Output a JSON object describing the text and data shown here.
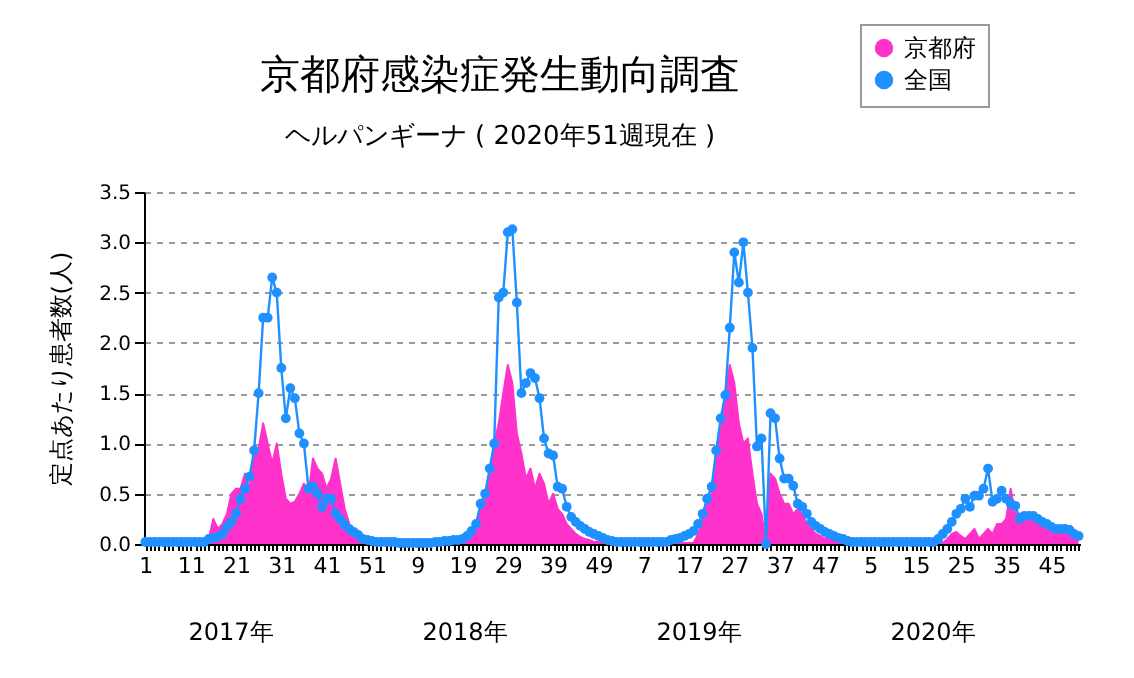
{
  "chart_data": {
    "type": "line",
    "title": "京都府感染症発生動向調査",
    "subtitle": "ヘルパンギーナ ( 2020年51週現在 )",
    "ylabel": "定点あたり患者数(人)",
    "annotations": [
      "2017年",
      "2018年",
      "2019年",
      "2020年"
    ],
    "categories": [
      "1",
      null,
      null,
      null,
      null,
      null,
      null,
      null,
      null,
      null,
      "11",
      null,
      null,
      null,
      null,
      null,
      null,
      null,
      null,
      null,
      "21",
      null,
      null,
      null,
      null,
      null,
      null,
      null,
      null,
      null,
      "31",
      null,
      null,
      null,
      null,
      null,
      null,
      null,
      null,
      null,
      "41",
      null,
      null,
      null,
      null,
      null,
      null,
      null,
      null,
      null,
      "51",
      null,
      null,
      null,
      null,
      null,
      null,
      null,
      null,
      null,
      "9",
      null,
      null,
      null,
      null,
      null,
      null,
      null,
      null,
      null,
      "19",
      null,
      null,
      null,
      null,
      null,
      null,
      null,
      null,
      null,
      "29",
      null,
      null,
      null,
      null,
      null,
      null,
      null,
      null,
      null,
      "39",
      null,
      null,
      null,
      null,
      null,
      null,
      null,
      null,
      null,
      "49",
      null,
      null,
      null,
      null,
      null,
      null,
      null,
      null,
      null,
      "7",
      null,
      null,
      null,
      null,
      null,
      null,
      null,
      null,
      null,
      "17",
      null,
      null,
      null,
      null,
      null,
      null,
      null,
      null,
      null,
      "27",
      null,
      null,
      null,
      null,
      null,
      null,
      null,
      null,
      null,
      "37",
      null,
      null,
      null,
      null,
      null,
      null,
      null,
      null,
      null,
      "47",
      null,
      null,
      null,
      null,
      null,
      null,
      null,
      null,
      null,
      "5",
      null,
      null,
      null,
      null,
      null,
      null,
      null,
      null,
      null,
      "15",
      null,
      null,
      null,
      null,
      null,
      null,
      null,
      null,
      null,
      "25",
      null,
      null,
      null,
      null,
      null,
      null,
      null,
      null,
      null,
      "35",
      null,
      null,
      null,
      null,
      null,
      null,
      null,
      null,
      null,
      "45",
      null,
      null,
      null,
      null,
      null,
      null
    ],
    "series": [
      {
        "name": "京都府",
        "type": "area",
        "color": "#ff33cc",
        "values": [
          0.01,
          0.01,
          0.01,
          0.01,
          0.01,
          0.01,
          0.01,
          0.01,
          0.01,
          0.01,
          0.01,
          0.01,
          0.01,
          0.01,
          0.05,
          0.25,
          0.15,
          0.2,
          0.3,
          0.5,
          0.55,
          0.55,
          0.7,
          0.55,
          0.9,
          0.95,
          1.2,
          1.0,
          0.8,
          1.0,
          0.7,
          0.45,
          0.4,
          0.42,
          0.5,
          0.6,
          0.5,
          0.85,
          0.75,
          0.7,
          0.55,
          0.65,
          0.85,
          0.6,
          0.35,
          0.2,
          0.1,
          0.05,
          0.02,
          0.01,
          0.01,
          0.01,
          0.01,
          0.01,
          0.01,
          0.01,
          0.01,
          0.01,
          0.01,
          0.01,
          0.01,
          0.01,
          0.01,
          0.01,
          0.01,
          0.01,
          0.01,
          0.01,
          0.01,
          0.01,
          0.02,
          0.03,
          0.05,
          0.2,
          0.35,
          0.45,
          0.7,
          1.0,
          1.2,
          1.5,
          1.78,
          1.6,
          1.1,
          0.9,
          0.65,
          0.75,
          0.55,
          0.7,
          0.6,
          0.4,
          0.5,
          0.35,
          0.3,
          0.2,
          0.15,
          0.1,
          0.07,
          0.05,
          0.04,
          0.02,
          0.02,
          0.02,
          0.02,
          0.02,
          0.01,
          0.01,
          0.01,
          0.01,
          0.01,
          0.01,
          0.01,
          0.01,
          0.01,
          0.01,
          0.01,
          0.01,
          0.01,
          0.01,
          0.01,
          0.01,
          0.01,
          0.01,
          0.1,
          0.25,
          0.4,
          0.5,
          0.9,
          1.2,
          1.5,
          1.78,
          1.6,
          1.2,
          1.0,
          1.05,
          0.7,
          0.4,
          0.3,
          0,
          0.7,
          0.65,
          0.5,
          0.4,
          0.4,
          0.3,
          0.35,
          0.3,
          0.2,
          0.15,
          0.1,
          0.08,
          0.05,
          0.1,
          0.05,
          0.02,
          0.01,
          0.01,
          0.01,
          0.01,
          0.01,
          0.01,
          0.01,
          0.01,
          0.01,
          0.01,
          0.01,
          0.01,
          0.01,
          0.01,
          0.01,
          0.01,
          0.01,
          0.01,
          0.01,
          0.01,
          0.01,
          0.01,
          0.01,
          0.05,
          0.1,
          0.12,
          0.08,
          0.05,
          0.1,
          0.15,
          0.05,
          0.1,
          0.15,
          0.1,
          0.2,
          0.2,
          0.25,
          0.55,
          0.3,
          0.3,
          0.3,
          0.3,
          0.25,
          0.25,
          0.22,
          0.2,
          0.15,
          0.15,
          0.12,
          0.12,
          0.1,
          0.1,
          0.08
        ]
      },
      {
        "name": "全国",
        "color": "#1e90ff",
        "marker": "circle",
        "values": [
          0.02,
          0.02,
          0.02,
          0.02,
          0.02,
          0.02,
          0.02,
          0.02,
          0.02,
          0.02,
          0.02,
          0.02,
          0.02,
          0.02,
          0.05,
          0.06,
          0.07,
          0.1,
          0.17,
          0.22,
          0.3,
          0.45,
          0.55,
          0.67,
          0.93,
          1.5,
          2.25,
          2.25,
          2.65,
          2.5,
          1.75,
          1.25,
          1.55,
          1.45,
          1.1,
          1.0,
          0.55,
          0.57,
          0.5,
          0.37,
          0.45,
          0.45,
          0.3,
          0.25,
          0.19,
          0.15,
          0.12,
          0.09,
          0.05,
          0.04,
          0.03,
          0.02,
          0.02,
          0.02,
          0.02,
          0.02,
          0.01,
          0.01,
          0.01,
          0.01,
          0.01,
          0.01,
          0.01,
          0.01,
          0.02,
          0.02,
          0.03,
          0.03,
          0.04,
          0.04,
          0.05,
          0.08,
          0.13,
          0.2,
          0.4,
          0.5,
          0.75,
          1.0,
          2.45,
          2.5,
          3.1,
          3.13,
          2.4,
          1.5,
          1.6,
          1.7,
          1.65,
          1.45,
          1.05,
          0.9,
          0.88,
          0.57,
          0.55,
          0.37,
          0.27,
          0.22,
          0.18,
          0.15,
          0.12,
          0.1,
          0.08,
          0.06,
          0.04,
          0.03,
          0.02,
          0.02,
          0.02,
          0.02,
          0.02,
          0.02,
          0.02,
          0.02,
          0.02,
          0.02,
          0.02,
          0.02,
          0.04,
          0.05,
          0.06,
          0.08,
          0.1,
          0.13,
          0.2,
          0.3,
          0.45,
          0.57,
          0.93,
          1.25,
          1.48,
          2.15,
          2.9,
          2.6,
          3.0,
          2.5,
          1.95,
          0.97,
          1.05,
          0,
          1.3,
          1.25,
          0.85,
          0.65,
          0.65,
          0.58,
          0.4,
          0.37,
          0.3,
          0.22,
          0.18,
          0.15,
          0.12,
          0.1,
          0.08,
          0.06,
          0.05,
          0.03,
          0.02,
          0.02,
          0.02,
          0.02,
          0.02,
          0.02,
          0.02,
          0.02,
          0.02,
          0.02,
          0.02,
          0.02,
          0.02,
          0.02,
          0.02,
          0.02,
          0.02,
          0.02,
          0.02,
          0.05,
          0.1,
          0.15,
          0.22,
          0.3,
          0.35,
          0.45,
          0.37,
          0.48,
          0.48,
          0.55,
          0.75,
          0.42,
          0.45,
          0.53,
          0.45,
          0.4,
          0.38,
          0.25,
          0.28,
          0.28,
          0.28,
          0.25,
          0.22,
          0.2,
          0.17,
          0.15,
          0.15,
          0.15,
          0.14,
          0.1,
          0.08
        ]
      }
    ],
    "ylim": [
      0,
      3.5
    ],
    "yticks": [
      {
        "value": 0,
        "label": "0.0"
      },
      {
        "value": 0.5,
        "label": "0.5"
      },
      {
        "value": 1,
        "label": "1.0"
      },
      {
        "value": 1.5,
        "label": "1.5"
      },
      {
        "value": 2,
        "label": "2.0"
      },
      {
        "value": 2.5,
        "label": "2.5"
      },
      {
        "value": 3,
        "label": "3.0"
      },
      {
        "value": 3.5,
        "label": "3.5"
      }
    ],
    "grid": "y",
    "legend": "top right"
  }
}
